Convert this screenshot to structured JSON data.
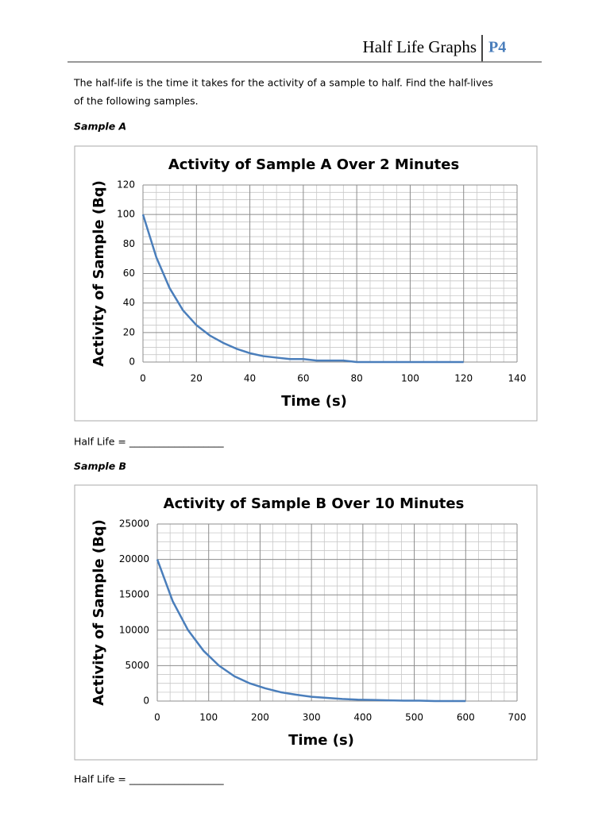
{
  "header": {
    "title": "Half Life Graphs",
    "code": "P4"
  },
  "intro": [
    "The half-life is the time it takes for the activity of a sample to half. Find the half-lives",
    "of the following samples."
  ],
  "sections": [
    {
      "label": "Sample A",
      "answer_prompt": "Half Life = ___________________"
    },
    {
      "label": "Sample B",
      "answer_prompt": "Half Life = ___________________"
    }
  ],
  "chart_data": [
    {
      "type": "line",
      "title": "Activity of Sample A Over 2 Minutes",
      "x_label": "Time (s)",
      "y_label": "Activity of Sample (Bq)",
      "x": [
        0,
        5,
        10,
        15,
        20,
        25,
        30,
        35,
        40,
        45,
        50,
        55,
        60,
        65,
        70,
        75,
        80,
        90,
        100,
        110,
        120
      ],
      "values": [
        100,
        71,
        50,
        35,
        25,
        18,
        13,
        9,
        6,
        4,
        3,
        2,
        2,
        1,
        1,
        1,
        0,
        0,
        0,
        0,
        0
      ],
      "color": "#4a7ebb",
      "xlim": [
        0,
        140
      ],
      "xticks": [
        0,
        20,
        40,
        60,
        80,
        100,
        120,
        140
      ],
      "ylim": [
        0,
        120
      ],
      "yticks": [
        0,
        20,
        40,
        60,
        80,
        100,
        120
      ],
      "grid": true
    },
    {
      "type": "line",
      "title": "Activity of Sample B Over 10 Minutes",
      "x_label": "Time (s)",
      "y_label": "Activity of Sample (Bq)",
      "x": [
        0,
        30,
        60,
        90,
        120,
        150,
        180,
        210,
        240,
        270,
        300,
        330,
        360,
        390,
        420,
        450,
        480,
        510,
        540,
        570,
        600
      ],
      "values": [
        20000,
        14100,
        10000,
        7100,
        5000,
        3500,
        2500,
        1800,
        1250,
        900,
        600,
        450,
        300,
        200,
        150,
        100,
        50,
        50,
        0,
        0,
        0
      ],
      "color": "#4a7ebb",
      "xlim": [
        0,
        700
      ],
      "xticks": [
        0,
        100,
        200,
        300,
        400,
        500,
        600,
        700
      ],
      "ylim": [
        0,
        25000
      ],
      "yticks": [
        0,
        5000,
        10000,
        15000,
        20000,
        25000
      ],
      "grid": true
    }
  ]
}
